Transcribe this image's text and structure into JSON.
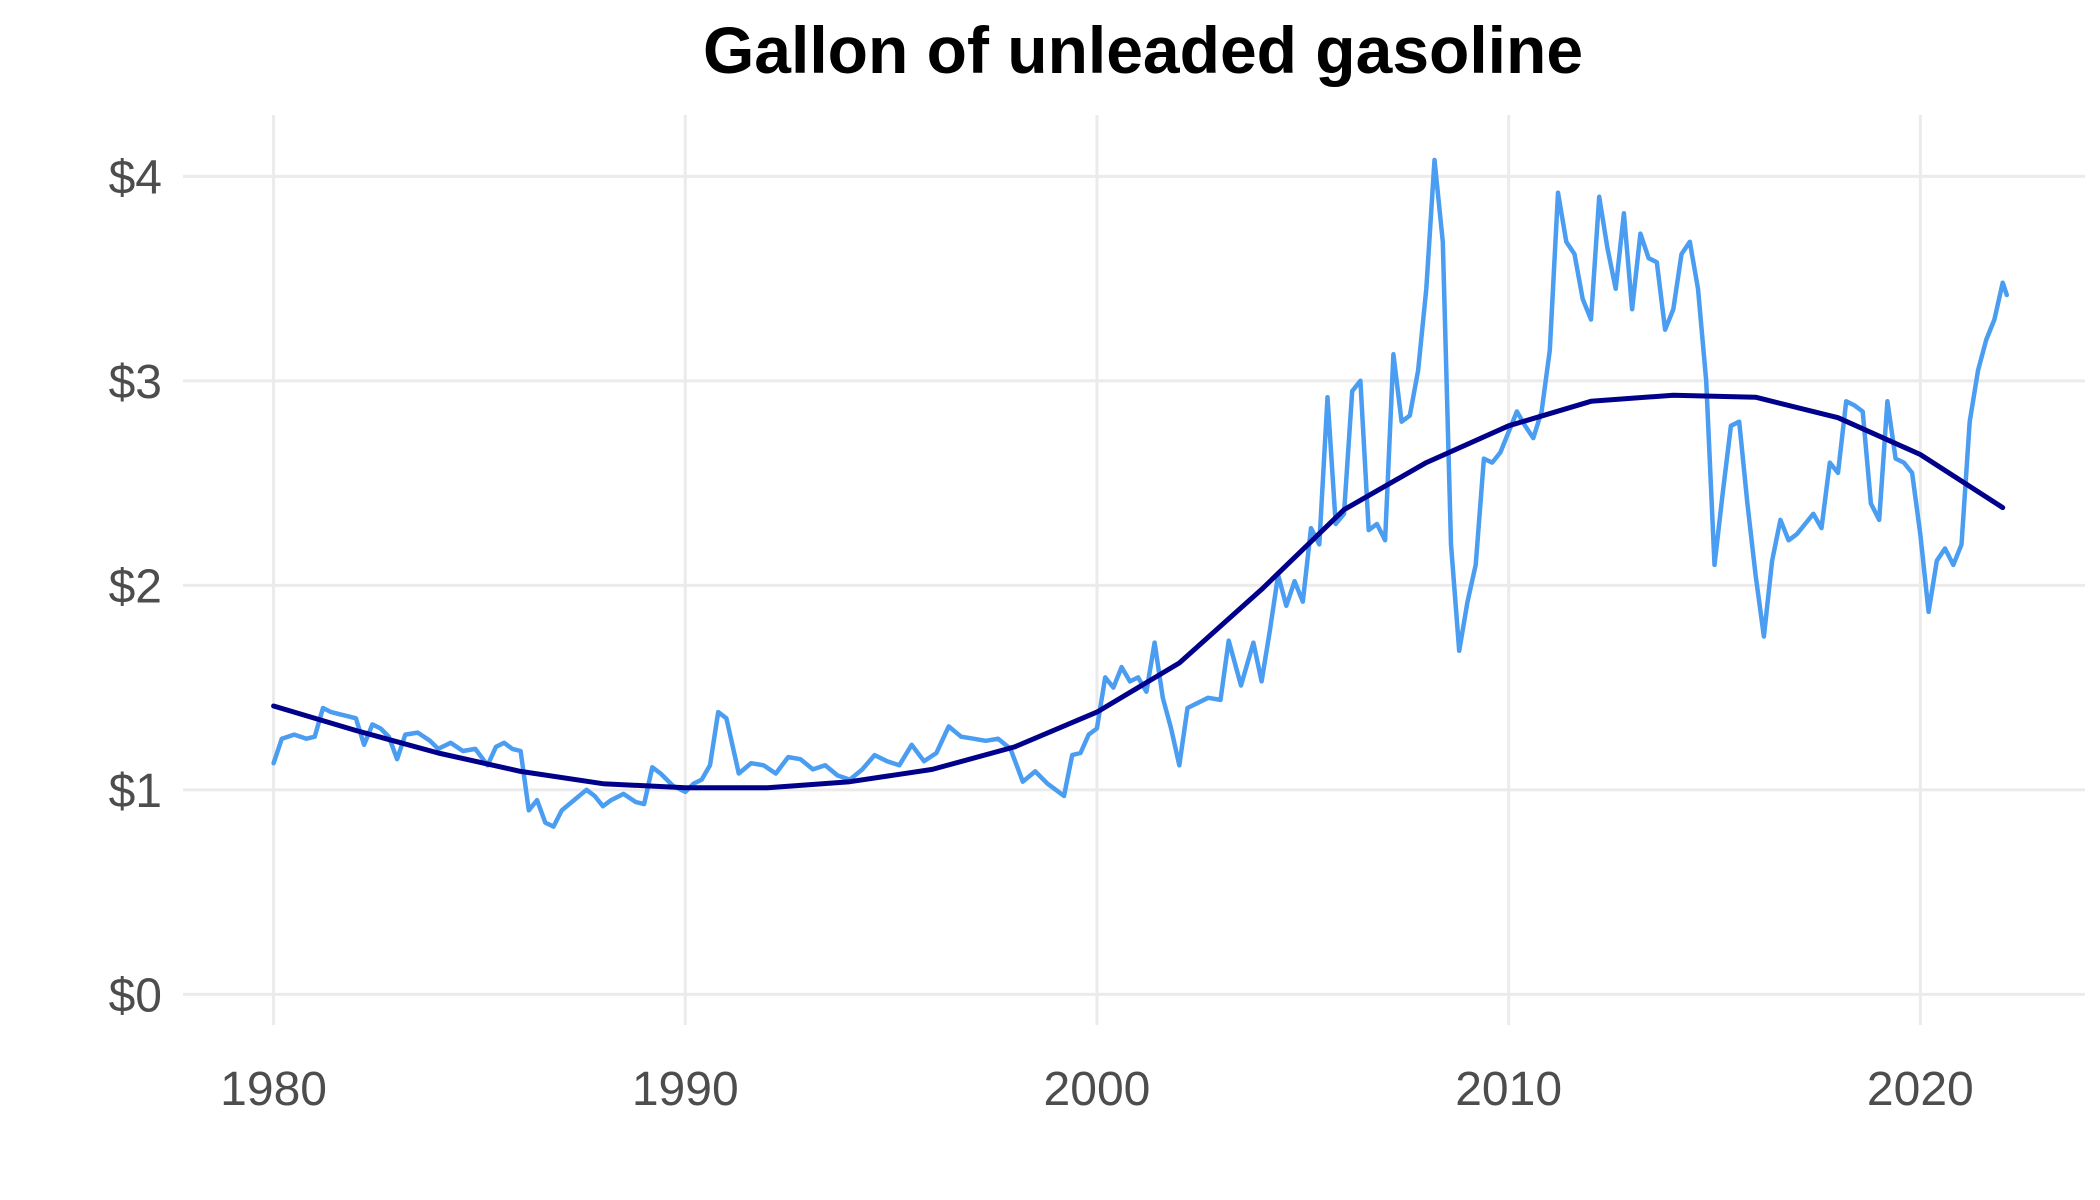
{
  "chart_data": {
    "type": "line",
    "title": "Gallon of unleaded gasoline",
    "xlabel": "",
    "ylabel": "",
    "xlim": [
      1977.8,
      2024.0
    ],
    "ylim": [
      -0.15,
      4.3
    ],
    "x_ticks": [
      1980,
      1990,
      2000,
      2010,
      2020
    ],
    "x_tick_labels": [
      "1980",
      "1990",
      "2000",
      "2010",
      "2020"
    ],
    "y_ticks": [
      0,
      1,
      2,
      3,
      4
    ],
    "y_tick_labels": [
      "$0",
      "$1",
      "$2",
      "$3",
      "$4"
    ],
    "grid": true,
    "legend": "none",
    "colors": {
      "price": "#4a9df0",
      "trend": "#00008b",
      "grid": "#ebebeb"
    },
    "series": [
      {
        "key": "price",
        "x": [
          1980.0,
          1980.2,
          1980.5,
          1980.8,
          1981.0,
          1981.2,
          1981.4,
          1981.6,
          1981.8,
          1982.0,
          1982.2,
          1982.4,
          1982.6,
          1982.8,
          1983.0,
          1983.2,
          1983.5,
          1983.8,
          1984.0,
          1984.3,
          1984.6,
          1984.9,
          1985.2,
          1985.4,
          1985.6,
          1985.8,
          1986.0,
          1986.2,
          1986.4,
          1986.6,
          1986.8,
          1987.0,
          1987.3,
          1987.6,
          1987.8,
          1988.0,
          1988.2,
          1988.5,
          1988.8,
          1989.0,
          1989.2,
          1989.4,
          1989.7,
          1990.0,
          1990.2,
          1990.4,
          1990.6,
          1990.8,
          1991.0,
          1991.3,
          1991.6,
          1991.9,
          1992.2,
          1992.5,
          1992.8,
          1993.1,
          1993.4,
          1993.7,
          1994.0,
          1994.3,
          1994.6,
          1994.9,
          1995.2,
          1995.5,
          1995.8,
          1996.1,
          1996.4,
          1996.7,
          1997.0,
          1997.3,
          1997.6,
          1997.9,
          1998.2,
          1998.5,
          1998.8,
          1999.0,
          1999.2,
          1999.4,
          1999.6,
          1999.8,
          2000.0,
          2000.2,
          2000.4,
          2000.6,
          2000.8,
          2001.0,
          2001.2,
          2001.4,
          2001.6,
          2001.8,
          2002.0,
          2002.2,
          2002.4,
          2002.7,
          2003.0,
          2003.2,
          2003.5,
          2003.8,
          2004.0,
          2004.2,
          2004.4,
          2004.6,
          2004.8,
          2005.0,
          2005.2,
          2005.4,
          2005.6,
          2005.8,
          2006.0,
          2006.2,
          2006.4,
          2006.6,
          2006.8,
          2007.0,
          2007.2,
          2007.4,
          2007.6,
          2007.8,
          2008.0,
          2008.2,
          2008.4,
          2008.6,
          2008.8,
          2009.0,
          2009.2,
          2009.4,
          2009.6,
          2009.8,
          2010.0,
          2010.2,
          2010.4,
          2010.6,
          2010.8,
          2011.0,
          2011.2,
          2011.4,
          2011.6,
          2011.8,
          2012.0,
          2012.2,
          2012.4,
          2012.6,
          2012.8,
          2013.0,
          2013.2,
          2013.4,
          2013.6,
          2013.8,
          2014.0,
          2014.2,
          2014.4,
          2014.6,
          2014.8,
          2015.0,
          2015.2,
          2015.4,
          2015.6,
          2015.8,
          2016.0,
          2016.2,
          2016.4,
          2016.6,
          2016.8,
          2017.0,
          2017.2,
          2017.4,
          2017.6,
          2017.8,
          2018.0,
          2018.2,
          2018.4,
          2018.6,
          2018.8,
          2019.0,
          2019.2,
          2019.4,
          2019.6,
          2019.8,
          2020.0,
          2020.2,
          2020.4,
          2020.6,
          2020.8,
          2021.0,
          2021.2,
          2021.4,
          2021.6,
          2021.8,
          2022.0,
          2022.1
        ],
        "y": [
          1.13,
          1.25,
          1.27,
          1.25,
          1.26,
          1.4,
          1.38,
          1.37,
          1.36,
          1.35,
          1.22,
          1.32,
          1.3,
          1.26,
          1.15,
          1.27,
          1.28,
          1.24,
          1.2,
          1.23,
          1.19,
          1.2,
          1.12,
          1.21,
          1.23,
          1.2,
          1.19,
          0.9,
          0.95,
          0.84,
          0.82,
          0.9,
          0.95,
          1.0,
          0.97,
          0.92,
          0.95,
          0.98,
          0.94,
          0.93,
          1.11,
          1.08,
          1.02,
          0.99,
          1.03,
          1.05,
          1.12,
          1.38,
          1.35,
          1.08,
          1.13,
          1.12,
          1.08,
          1.16,
          1.15,
          1.1,
          1.12,
          1.07,
          1.05,
          1.1,
          1.17,
          1.14,
          1.12,
          1.22,
          1.14,
          1.18,
          1.31,
          1.26,
          1.25,
          1.24,
          1.25,
          1.2,
          1.04,
          1.09,
          1.03,
          1.0,
          0.97,
          1.17,
          1.18,
          1.27,
          1.3,
          1.55,
          1.5,
          1.6,
          1.53,
          1.55,
          1.48,
          1.72,
          1.45,
          1.3,
          1.12,
          1.4,
          1.42,
          1.45,
          1.44,
          1.73,
          1.51,
          1.72,
          1.53,
          1.78,
          2.05,
          1.9,
          2.02,
          1.92,
          2.28,
          2.2,
          2.92,
          2.3,
          2.35,
          2.95,
          3.0,
          2.27,
          2.3,
          2.22,
          3.13,
          2.8,
          2.83,
          3.05,
          3.45,
          4.08,
          3.68,
          2.2,
          1.68,
          1.92,
          2.1,
          2.62,
          2.6,
          2.65,
          2.75,
          2.85,
          2.78,
          2.72,
          2.85,
          3.15,
          3.92,
          3.68,
          3.62,
          3.4,
          3.3,
          3.9,
          3.65,
          3.45,
          3.82,
          3.35,
          3.72,
          3.6,
          3.58,
          3.25,
          3.35,
          3.62,
          3.68,
          3.45,
          3.0,
          2.1,
          2.45,
          2.78,
          2.8,
          2.4,
          2.05,
          1.75,
          2.12,
          2.32,
          2.22,
          2.25,
          2.3,
          2.35,
          2.28,
          2.6,
          2.55,
          2.9,
          2.88,
          2.85,
          2.4,
          2.32,
          2.9,
          2.62,
          2.6,
          2.55,
          2.25,
          1.87,
          2.12,
          2.18,
          2.1,
          2.2,
          2.8,
          3.05,
          3.2,
          3.3,
          3.48,
          3.42
        ]
      },
      {
        "key": "trend",
        "x": [
          1980,
          1982,
          1984,
          1986,
          1988,
          1990,
          1992,
          1994,
          1996,
          1998,
          2000,
          2002,
          2004,
          2006,
          2008,
          2010,
          2012,
          2014,
          2016,
          2018,
          2020,
          2022
        ],
        "y": [
          1.41,
          1.29,
          1.18,
          1.09,
          1.03,
          1.01,
          1.01,
          1.04,
          1.1,
          1.21,
          1.38,
          1.62,
          1.98,
          2.37,
          2.6,
          2.78,
          2.9,
          2.93,
          2.92,
          2.82,
          2.64,
          2.38
        ]
      }
    ]
  }
}
